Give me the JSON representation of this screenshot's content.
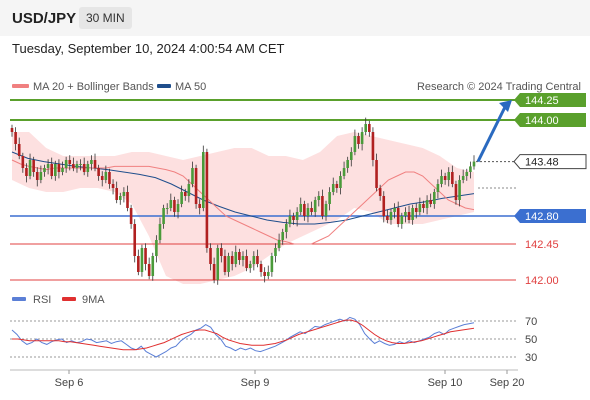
{
  "header": {
    "symbol": "USD/JPY",
    "timeframe": "30 MIN"
  },
  "timestamp": "Tuesday, September 10, 2024 4:00:54 AM CET",
  "legend": {
    "ma_bb": "MA 20 + Bollinger Bands",
    "ma50": "MA 50",
    "credit": "Research © 2024 Trading Central",
    "rsi": "RSI",
    "rsi_ma": "9MA"
  },
  "colors": {
    "ma_bb": "#f08080",
    "ma50": "#1f4e8c",
    "bands": "#fde0e0",
    "resistance": "#5aa02c",
    "support": "#3b6fd0",
    "levels": "#e04040",
    "up": "#4a9a3a",
    "down": "#b02020",
    "arrow": "#2a6ac0",
    "rsi": "#5b7fd6",
    "rsi_ma": "#e03030"
  },
  "chart_data": [
    {
      "type": "candlestick",
      "title": "USD/JPY",
      "x_ticks": [
        "Sep 6",
        "Sep 9",
        "Sep 10",
        "Sep 20"
      ],
      "ylim": [
        141.85,
        144.45
      ],
      "price_labels": [
        {
          "label": "144.25",
          "value": 144.25,
          "style": "target"
        },
        {
          "label": "144.00",
          "value": 144.0,
          "style": "resistance"
        },
        {
          "label": "143.48",
          "value": 143.48,
          "style": "last"
        },
        {
          "label": "142.80",
          "value": 142.8,
          "style": "support"
        },
        {
          "label": "142.45",
          "value": 142.45,
          "style": "level"
        },
        {
          "label": "142.00",
          "value": 142.0,
          "style": "level"
        }
      ],
      "candles_close": [
        143.85,
        143.7,
        143.55,
        143.4,
        143.3,
        143.5,
        143.35,
        143.25,
        143.35,
        143.4,
        143.45,
        143.3,
        143.45,
        143.35,
        143.4,
        143.5,
        143.45,
        143.4,
        143.45,
        143.45,
        143.35,
        143.45,
        143.5,
        143.4,
        143.3,
        143.25,
        143.35,
        143.2,
        143.15,
        143.0,
        143.05,
        143.1,
        142.9,
        142.7,
        142.3,
        142.1,
        142.4,
        142.2,
        142.05,
        142.3,
        142.5,
        142.7,
        142.9,
        142.9,
        143.0,
        142.85,
        142.95,
        143.1,
        143.05,
        143.2,
        143.4,
        142.95,
        142.9,
        143.6,
        142.4,
        142.2,
        142.0,
        142.4,
        142.3,
        142.1,
        142.3,
        142.2,
        142.35,
        142.25,
        142.3,
        142.15,
        142.2,
        142.3,
        142.2,
        142.1,
        142.05,
        142.1,
        142.3,
        142.4,
        142.5,
        142.6,
        142.7,
        142.8,
        142.75,
        142.85,
        142.95,
        142.8,
        142.9,
        142.85,
        143.0,
        143.05,
        142.8,
        142.95,
        143.1,
        143.2,
        143.15,
        143.3,
        143.4,
        143.5,
        143.6,
        143.8,
        143.7,
        143.85,
        143.95,
        143.85,
        143.5,
        143.15,
        143.05,
        142.8,
        142.75,
        142.85,
        142.9,
        142.7,
        142.8,
        142.85,
        142.75,
        142.9,
        142.85,
        142.95,
        142.9,
        143.0,
        142.95,
        143.1,
        143.2,
        143.3,
        143.25,
        143.35,
        143.2,
        143.0,
        143.25,
        143.3,
        143.35,
        143.42,
        143.48
      ],
      "ma20": [
        143.5,
        143.45,
        143.42,
        143.4,
        143.38,
        143.4,
        143.4,
        143.4,
        143.4,
        143.4,
        143.4,
        143.4,
        143.42,
        143.42,
        143.42,
        143.42,
        143.42,
        143.4,
        143.38,
        143.35,
        143.3,
        143.2,
        143.1,
        143.0,
        142.9,
        142.8,
        142.75,
        142.7,
        142.65,
        142.6,
        142.55,
        142.5,
        142.48,
        142.45,
        142.45,
        142.45,
        142.5,
        142.55,
        142.65,
        142.75,
        142.85,
        142.95,
        143.05,
        143.15,
        143.25,
        143.3,
        143.35,
        143.35,
        143.3,
        143.2,
        143.1,
        143.0,
        142.95,
        142.9,
        142.88
      ],
      "ma50": [
        143.6,
        143.52,
        143.48,
        143.45,
        143.42,
        143.4,
        143.38,
        143.35,
        143.32,
        143.28,
        143.2,
        143.1,
        143.0,
        142.92,
        142.85,
        142.8,
        142.75,
        142.72,
        142.7,
        142.7,
        142.72,
        142.75,
        142.8,
        142.85,
        142.9,
        142.95,
        142.98,
        143.02,
        143.05,
        143.08
      ],
      "bb_upper": [
        143.85,
        143.85,
        143.65,
        143.55,
        143.55,
        143.55,
        143.55,
        143.6,
        143.6,
        143.55,
        143.5,
        143.55,
        143.6,
        143.65,
        143.65,
        143.55,
        143.55,
        143.5,
        143.6,
        143.8,
        143.85,
        143.8,
        143.75,
        143.7,
        143.65,
        143.55,
        143.4,
        143.35
      ],
      "bb_lower": [
        143.25,
        143.15,
        143.1,
        143.1,
        143.15,
        143.15,
        143.1,
        142.95,
        142.55,
        142.05,
        141.95,
        141.95,
        142.0,
        142.05,
        142.15,
        142.3,
        142.45,
        142.55,
        142.65,
        142.75,
        142.9,
        142.85,
        142.7,
        142.7,
        142.7,
        142.75,
        142.8,
        142.85
      ]
    },
    {
      "type": "line",
      "title": "RSI",
      "ylim": [
        20,
        80
      ],
      "y_ticks": [
        70,
        50,
        30
      ],
      "series": [
        {
          "name": "RSI",
          "values": [
            60,
            55,
            48,
            44,
            46,
            50,
            46,
            44,
            47,
            49,
            50,
            46,
            48,
            46,
            47,
            50,
            49,
            46,
            47,
            48,
            45,
            47,
            48,
            44,
            40,
            38,
            42,
            36,
            33,
            30,
            33,
            36,
            40,
            42,
            48,
            52,
            55,
            60,
            62,
            66,
            63,
            55,
            50,
            42,
            40,
            37,
            40,
            38,
            40,
            37,
            36,
            38,
            40,
            42,
            45,
            48,
            52,
            55,
            58,
            56,
            60,
            64,
            63,
            66,
            68,
            70,
            72,
            70,
            74,
            72,
            66,
            56,
            50,
            45,
            48,
            45,
            43,
            44,
            47,
            45,
            48,
            46,
            48,
            50,
            52,
            56,
            58,
            55,
            60,
            62,
            64,
            66,
            67,
            68
          ]
        },
        {
          "name": "9MA",
          "values": [
            50,
            50,
            49,
            48,
            48,
            48,
            48,
            48,
            48,
            47,
            47,
            46,
            45,
            44,
            43,
            42,
            41,
            40,
            39,
            38,
            38,
            38,
            39,
            40,
            42,
            44,
            46,
            49,
            52,
            55,
            57,
            59,
            60,
            60,
            58,
            56,
            52,
            49,
            47,
            45,
            44,
            43,
            43,
            43,
            44,
            45,
            47,
            49,
            52,
            55,
            57,
            59,
            61,
            63,
            65,
            67,
            69,
            71,
            71,
            69,
            65,
            60,
            55,
            51,
            48,
            46,
            45,
            45,
            46,
            47,
            48,
            50,
            52,
            54,
            56,
            58,
            59,
            60,
            61,
            62
          ]
        }
      ]
    }
  ]
}
